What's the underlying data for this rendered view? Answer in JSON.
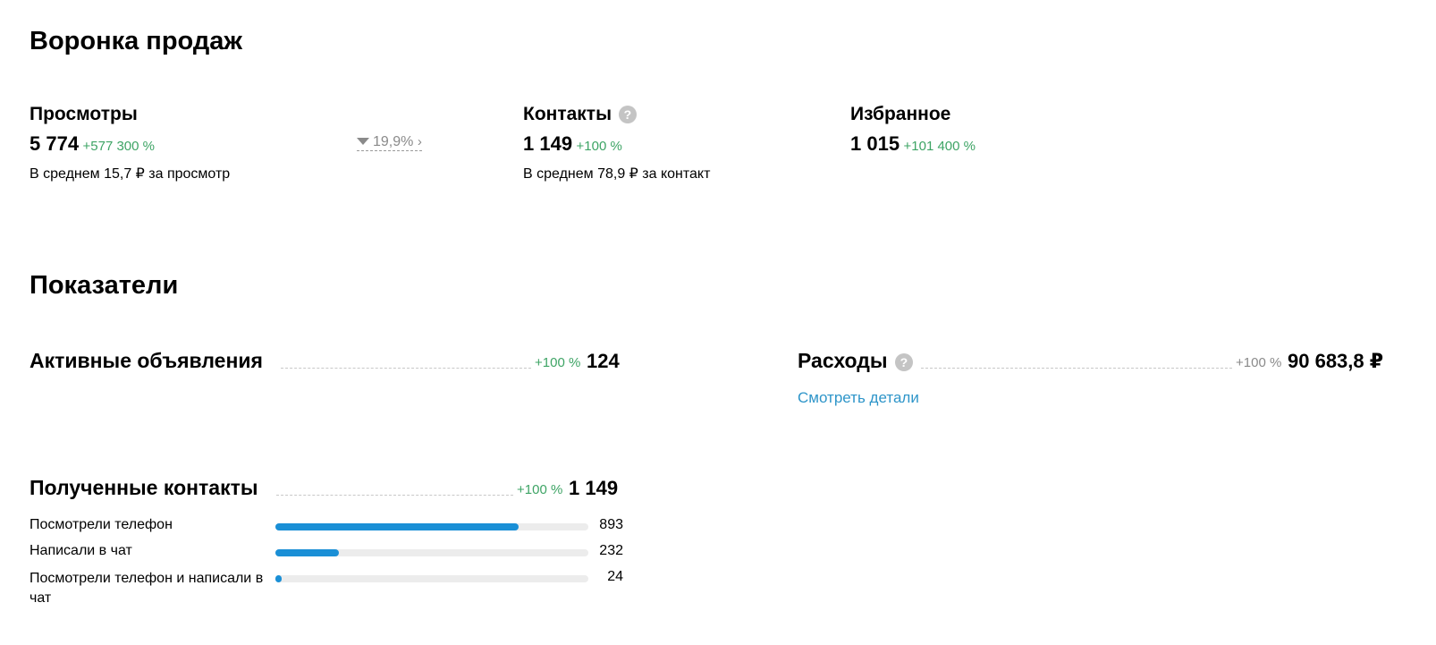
{
  "funnel": {
    "title": "Воронка продаж",
    "views": {
      "label": "Просмотры",
      "value": "5 774",
      "change": "+577 300 %",
      "avg": "В среднем 15,7 ₽ за просмотр",
      "conversion": "19,9%"
    },
    "contacts": {
      "label": "Контакты",
      "value": "1 149",
      "change": "+100 %",
      "avg": "В среднем 78,9 ₽ за контакт"
    },
    "favorites": {
      "label": "Избранное",
      "value": "1 015",
      "change": "+101 400 %"
    }
  },
  "metrics": {
    "title": "Показатели",
    "active_ads": {
      "label": "Активные объявления",
      "change": "+100 %",
      "value": "124"
    },
    "expenses": {
      "label": "Расходы",
      "change": "+100 %",
      "value": "90 683,8 ₽",
      "details_link": "Смотреть детали"
    },
    "received_contacts": {
      "label": "Полученные контакты",
      "change": "+100 %",
      "value": "1 149",
      "breakdown": [
        {
          "label": "Посмотрели телефон",
          "value": "893",
          "fraction": 0.777
        },
        {
          "label": "Написали в чат",
          "value": "232",
          "fraction": 0.202
        },
        {
          "label": "Посмотрели телефон и написали в чат",
          "value": "24",
          "fraction": 0.021
        }
      ]
    }
  },
  "colors": {
    "positive": "#3ea465",
    "accent": "#1a8fd6",
    "link": "#2e95c9"
  },
  "icons": {
    "help": "question-circle-icon",
    "funnel": "funnel-icon",
    "chevron": "chevron-right-icon"
  }
}
